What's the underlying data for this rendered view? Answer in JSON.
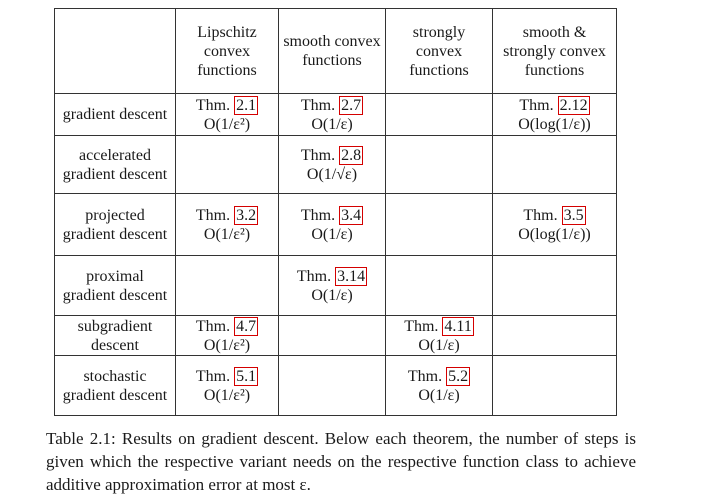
{
  "table": {
    "columns": [
      "",
      "Lipschitz convex functions",
      "smooth convex functions",
      "strongly convex functions",
      "smooth & strongly convex functions"
    ],
    "rows": [
      {
        "method": "gradient descent",
        "cells": [
          {
            "thm_prefix": "Thm.",
            "ref": "2.1",
            "bound": "O(1/ε²)"
          },
          {
            "thm_prefix": "Thm.",
            "ref": "2.7",
            "bound": "O(1/ε)"
          },
          null,
          {
            "thm_prefix": "Thm.",
            "ref": "2.12",
            "bound": "O(log(1/ε))"
          }
        ]
      },
      {
        "method": "accelerated gradient descent",
        "cells": [
          null,
          {
            "thm_prefix": "Thm.",
            "ref": "2.8",
            "bound": "O(1/√ε)"
          },
          null,
          null
        ]
      },
      {
        "method": "projected gradient descent",
        "cells": [
          {
            "thm_prefix": "Thm.",
            "ref": "3.2",
            "bound": "O(1/ε²)"
          },
          {
            "thm_prefix": "Thm.",
            "ref": "3.4",
            "bound": "O(1/ε)"
          },
          null,
          {
            "thm_prefix": "Thm.",
            "ref": "3.5",
            "bound": "O(log(1/ε))"
          }
        ]
      },
      {
        "method": "proximal gradient descent",
        "cells": [
          null,
          {
            "thm_prefix": "Thm.",
            "ref": "3.14",
            "bound": "O(1/ε)"
          },
          null,
          null
        ]
      },
      {
        "method": "subgradient descent",
        "cells": [
          {
            "thm_prefix": "Thm.",
            "ref": "4.7",
            "bound": "O(1/ε²)"
          },
          null,
          {
            "thm_prefix": "Thm.",
            "ref": "4.11",
            "bound": "O(1/ε)"
          },
          null
        ]
      },
      {
        "method": "stochastic gradient descent",
        "cells": [
          {
            "thm_prefix": "Thm.",
            "ref": "5.1",
            "bound": "O(1/ε²)"
          },
          null,
          {
            "thm_prefix": "Thm.",
            "ref": "5.2",
            "bound": "O(1/ε)"
          },
          null
        ]
      }
    ]
  },
  "caption": "Table 2.1: Results on gradient descent. Below each theorem, the number of steps is given which the respective variant needs on the respective function class to achieve additive approximation error at most ε.",
  "colors": {
    "text": "#1a1a1a",
    "rule": "#333333",
    "link_box": "#d40000"
  }
}
